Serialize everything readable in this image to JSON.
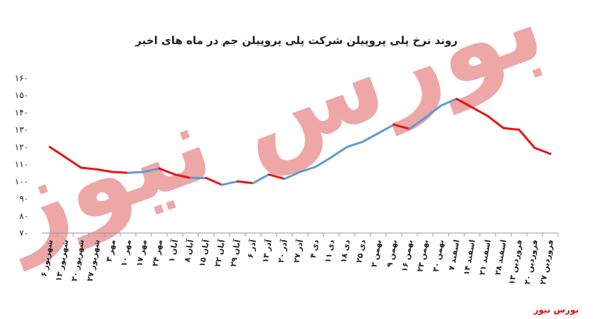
{
  "chart_data": {
    "type": "line",
    "title": "روند نرخ پلی پروپیلن شرکت پلی پروپیلن جم در ماه های اخیر",
    "watermark": "بورس نیوز",
    "source": "بورس نیوز",
    "categories": [
      "۶ شهریور",
      "۱۳ شهریور",
      "۲۰ شهریور",
      "۲۷ شهریور",
      "۳ مهر",
      "۱۰ مهر",
      "۱۷ مهر",
      "۲۴ مهر",
      "۱ آبان",
      "۸ آبان",
      "۱۵ آبان",
      "۲۲ آبان",
      "۲۹ آبان",
      "۶ آذر",
      "۱۳ آذر",
      "۲۰ آذر",
      "۲۷ آذر",
      "۴ دی",
      "۱۱ دی",
      "۱۸ دی",
      "۲۵ دی",
      "۲ بهمن",
      "۹ بهمن",
      "۱۶ بهمن",
      "۲۳ بهمن",
      "۳۰ بهمن",
      "۷ اسفند",
      "۱۴ اسفند",
      "۲۱ اسفند",
      "۲۸ اسفند",
      "۱۳ فروردین",
      "۲۰ فروردین",
      "۲۷ فروردین"
    ],
    "values": [
      120,
      114,
      108,
      107,
      105.5,
      105,
      105.5,
      107.5,
      104,
      102,
      102,
      98,
      100,
      99,
      104,
      101.5,
      105.5,
      108.5,
      114,
      120,
      123,
      128,
      133,
      130.5,
      137,
      144,
      148,
      143,
      138,
      131,
      130,
      119.5,
      116
    ],
    "up_color": "#5b9bd5",
    "down_color": "#ee1111",
    "ylim": [
      70,
      160
    ],
    "yticks": [
      {
        "value": 70,
        "label": "۷۰"
      },
      {
        "value": 80,
        "label": "۸۰"
      },
      {
        "value": 90,
        "label": "۹۰"
      },
      {
        "value": 100,
        "label": "۱۰۰"
      },
      {
        "value": 110,
        "label": "۱۱۰"
      },
      {
        "value": 120,
        "label": "۱۲۰"
      },
      {
        "value": 130,
        "label": "۱۳۰"
      },
      {
        "value": 140,
        "label": "۱۴۰"
      },
      {
        "value": 150,
        "label": "۱۵۰"
      },
      {
        "value": 160,
        "label": "۱۶۰"
      }
    ],
    "grid": false
  }
}
